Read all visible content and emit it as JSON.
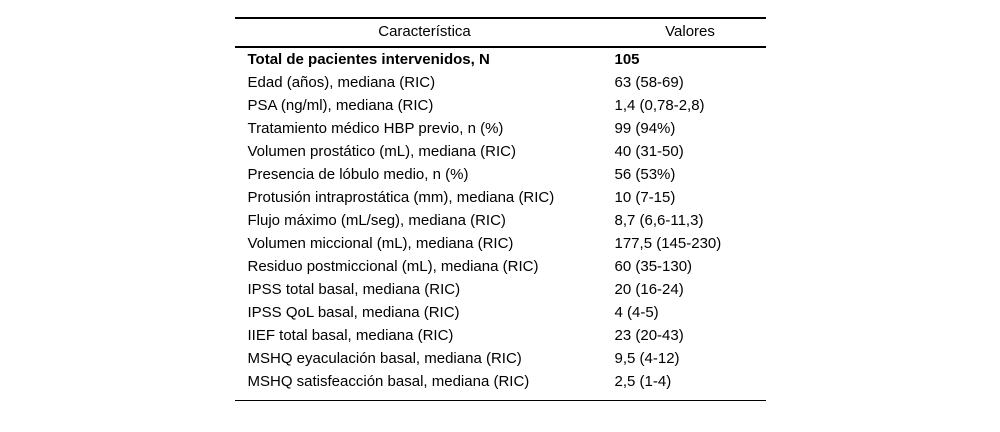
{
  "table": {
    "headers": {
      "characteristic": "Característica",
      "values": "Valores"
    },
    "rows": [
      {
        "label": "Total de pacientes intervenidos, N",
        "value": "105",
        "bold": true
      },
      {
        "label": "Edad (años), mediana (RIC)",
        "value": "63 (58-69)",
        "bold": false
      },
      {
        "label": "PSA (ng/ml), mediana (RIC)",
        "value": "1,4 (0,78-2,8)",
        "bold": false
      },
      {
        "label": "Tratamiento médico HBP previo, n (%)",
        "value": "99 (94%)",
        "bold": false
      },
      {
        "label": "Volumen prostático (mL), mediana (RIC)",
        "value": "40 (31-50)",
        "bold": false
      },
      {
        "label": "Presencia de lóbulo medio, n (%)",
        "value": "56 (53%)",
        "bold": false
      },
      {
        "label": "Protusión intraprostática (mm), mediana (RIC)",
        "value": "10 (7-15)",
        "bold": false
      },
      {
        "label": "Flujo máximo (mL/seg), mediana (RIC)",
        "value": "8,7 (6,6-11,3)",
        "bold": false
      },
      {
        "label": "Volumen miccional (mL), mediana (RIC)",
        "value": "177,5 (145-230)",
        "bold": false
      },
      {
        "label": "Residuo postmiccional (mL), mediana (RIC)",
        "value": "60 (35-130)",
        "bold": false
      },
      {
        "label": "IPSS total basal, mediana (RIC)",
        "value": "20 (16-24)",
        "bold": false
      },
      {
        "label": "IPSS QoL basal, mediana (RIC)",
        "value": "4 (4-5)",
        "bold": false
      },
      {
        "label": "IIEF total basal, mediana (RIC)",
        "value": "23 (20-43)",
        "bold": false
      },
      {
        "label": "MSHQ eyaculación basal, mediana (RIC)",
        "value": "9,5 (4-12)",
        "bold": false
      },
      {
        "label": "MSHQ satisfeacción basal, mediana (RIC)",
        "value": "2,5 (1-4)",
        "bold": false
      }
    ]
  }
}
